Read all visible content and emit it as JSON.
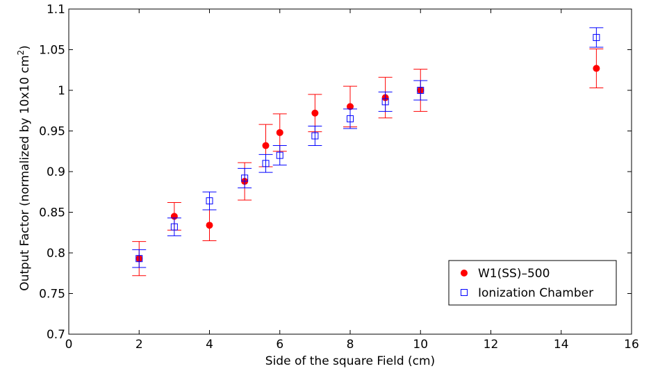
{
  "chart_data": {
    "type": "scatter",
    "xlabel": "Side of the square Field (cm)",
    "ylabel": "Output Factor (normalized by 10x10 cm",
    "ylabel_superscript": "2",
    "ylabel_close": ")",
    "xlim": [
      0,
      16
    ],
    "ylim": [
      0.7,
      1.1
    ],
    "x_ticks": [
      0,
      2,
      4,
      6,
      8,
      10,
      12,
      14,
      16
    ],
    "x_tick_labels": [
      "0",
      "2",
      "4",
      "6",
      "8",
      "10",
      "12",
      "14",
      "16"
    ],
    "y_ticks": [
      0.7,
      0.75,
      0.8,
      0.85,
      0.9,
      0.95,
      1.0,
      1.05,
      1.1
    ],
    "y_tick_labels": [
      "0.7",
      "0.75",
      "0.8",
      "0.85",
      "0.9",
      "0.95",
      "1",
      "1.05",
      "1.1"
    ],
    "grid": false,
    "legend_position": "bottom-right",
    "series": [
      {
        "name": "W1(SS)–500",
        "color": "#ff0000",
        "marker": "filled-circle",
        "points": [
          {
            "x": 2,
            "y": 0.793,
            "err": 0.021
          },
          {
            "x": 3,
            "y": 0.845,
            "err": 0.017
          },
          {
            "x": 4,
            "y": 0.834,
            "err": 0.019
          },
          {
            "x": 5,
            "y": 0.888,
            "err": 0.023
          },
          {
            "x": 5.6,
            "y": 0.932,
            "err": 0.026
          },
          {
            "x": 6,
            "y": 0.948,
            "err": 0.023
          },
          {
            "x": 7,
            "y": 0.972,
            "err": 0.023
          },
          {
            "x": 8,
            "y": 0.98,
            "err": 0.025
          },
          {
            "x": 9,
            "y": 0.991,
            "err": 0.025
          },
          {
            "x": 10,
            "y": 1.0,
            "err": 0.026
          },
          {
            "x": 15,
            "y": 1.027,
            "err": 0.024
          }
        ]
      },
      {
        "name": "Ionization Chamber",
        "color": "#0000ff",
        "marker": "open-square",
        "points": [
          {
            "x": 2,
            "y": 0.793,
            "err": 0.011
          },
          {
            "x": 3,
            "y": 0.832,
            "err": 0.011
          },
          {
            "x": 4,
            "y": 0.864,
            "err": 0.011
          },
          {
            "x": 5,
            "y": 0.892,
            "err": 0.012
          },
          {
            "x": 5.6,
            "y": 0.91,
            "err": 0.011
          },
          {
            "x": 6,
            "y": 0.92,
            "err": 0.012
          },
          {
            "x": 7,
            "y": 0.944,
            "err": 0.012
          },
          {
            "x": 8,
            "y": 0.965,
            "err": 0.012
          },
          {
            "x": 9,
            "y": 0.986,
            "err": 0.012
          },
          {
            "x": 10,
            "y": 1.0,
            "err": 0.012
          },
          {
            "x": 15,
            "y": 1.065,
            "err": 0.012
          }
        ]
      }
    ]
  }
}
